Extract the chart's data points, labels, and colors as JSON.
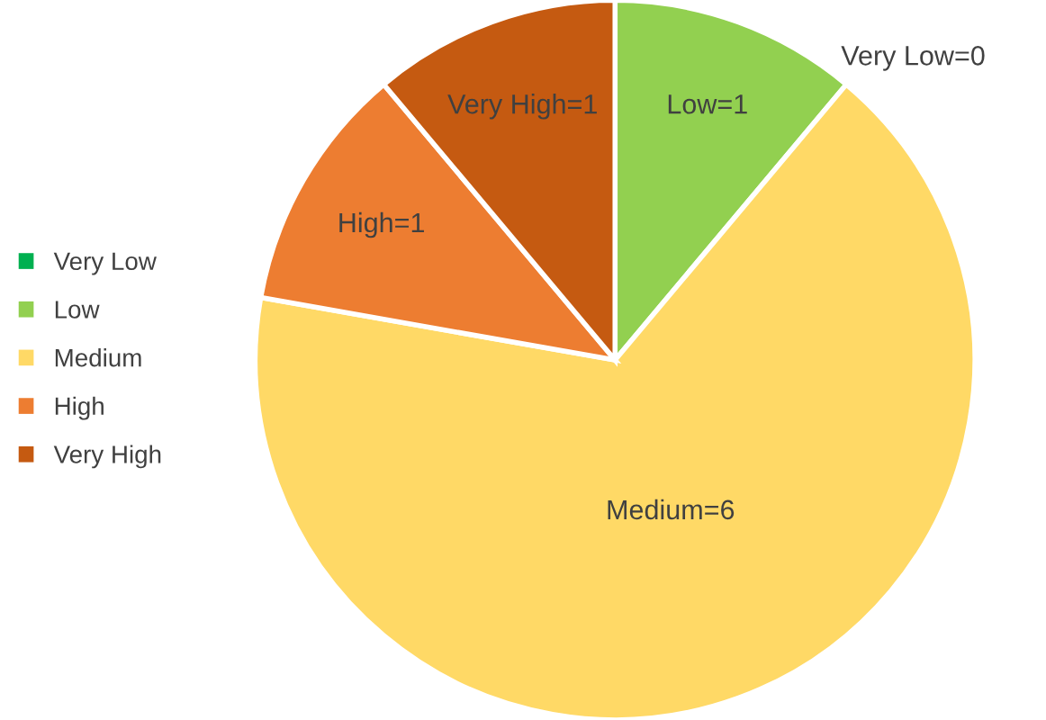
{
  "chart_data": {
    "type": "pie",
    "categories": [
      "Very Low",
      "Low",
      "Medium",
      "High",
      "Very High"
    ],
    "values": [
      0,
      1,
      6,
      1,
      1
    ],
    "colors": [
      "#00b050",
      "#92d050",
      "#ffd966",
      "#ed7d31",
      "#c55a11"
    ],
    "value_labels": [
      "Very Low=0",
      "Low=1",
      "Medium=6",
      "High=1",
      "Very High=1"
    ],
    "legend": "left"
  }
}
